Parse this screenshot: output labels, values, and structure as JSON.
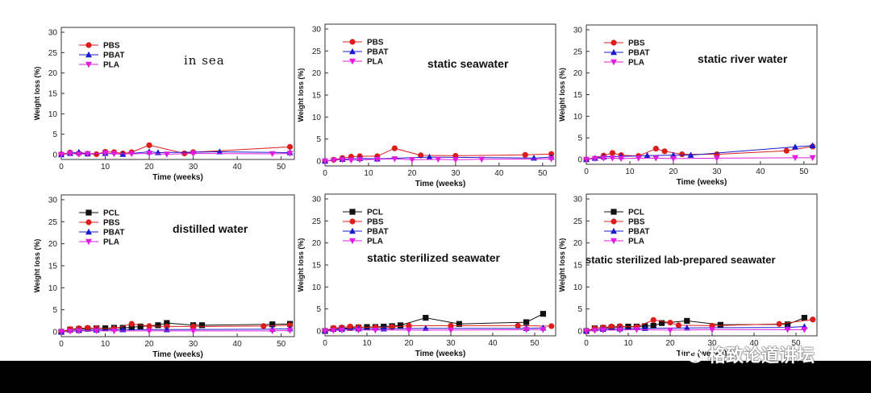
{
  "colors": {
    "PCL": "#111111",
    "PBS": "#dd1c1c",
    "PBAT": "#1a1ad0",
    "PLA": "#e01ce0"
  },
  "watermark": {
    "text": "格致论道讲坛",
    "icon": "wechat-icon"
  },
  "chart_data": [
    {
      "type": "line",
      "title": "in sea",
      "xlabel": "Time (weeks)",
      "ylabel": "Weight loss (%)",
      "xlim": [
        0,
        53
      ],
      "ylim": [
        0,
        30
      ],
      "xticks": [
        0,
        10,
        20,
        30,
        40,
        50
      ],
      "yticks": [
        0,
        5,
        10,
        15,
        20,
        25,
        30
      ],
      "legend": "top-left",
      "grid": false,
      "series": [
        {
          "name": "PBS",
          "marker": "circle",
          "x": [
            0,
            2,
            4,
            6,
            8,
            10,
            12,
            14,
            16,
            20,
            28,
            30,
            52
          ],
          "y": [
            0.1,
            0.5,
            0.3,
            0.2,
            0.1,
            0.7,
            0.6,
            0.3,
            0.6,
            2.3,
            0.3,
            0.6,
            1.9
          ]
        },
        {
          "name": "PBAT",
          "marker": "triangle-up",
          "x": [
            0,
            2,
            4,
            6,
            10,
            14,
            20,
            22,
            36,
            52
          ],
          "y": [
            0.0,
            0.3,
            0.6,
            0.2,
            0.3,
            0.1,
            0.7,
            0.5,
            0.7,
            0.5
          ]
        },
        {
          "name": "PLA",
          "marker": "triangle-down",
          "x": [
            0,
            2,
            4,
            6,
            10,
            12,
            16,
            20,
            24,
            30,
            48,
            52
          ],
          "y": [
            0.0,
            0.3,
            0.1,
            0.2,
            0.4,
            0.2,
            0.2,
            0.3,
            0.1,
            0.3,
            0.2,
            0.3
          ]
        }
      ]
    },
    {
      "type": "line",
      "title": "static seawater",
      "xlabel": "Time (weeks)",
      "ylabel": "Weight loss (%)",
      "xlim": [
        0,
        53
      ],
      "ylim": [
        0,
        30
      ],
      "xticks": [
        0,
        10,
        20,
        30,
        40,
        50
      ],
      "yticks": [
        0,
        5,
        10,
        15,
        20,
        25,
        30
      ],
      "legend": "top-left",
      "grid": false,
      "series": [
        {
          "name": "PBS",
          "marker": "circle",
          "x": [
            0,
            2,
            4,
            6,
            8,
            12,
            16,
            22,
            30,
            46,
            52
          ],
          "y": [
            0.0,
            0.3,
            0.7,
            1.0,
            1.1,
            1.1,
            2.9,
            1.3,
            1.2,
            1.4,
            1.6
          ]
        },
        {
          "name": "PBAT",
          "marker": "triangle-up",
          "x": [
            0,
            4,
            8,
            12,
            24,
            48,
            52
          ],
          "y": [
            0.0,
            0.4,
            0.6,
            0.5,
            0.9,
            0.7,
            0.9
          ]
        },
        {
          "name": "PLA",
          "marker": "triangle-down",
          "x": [
            0,
            2,
            4,
            6,
            8,
            12,
            16,
            20,
            26,
            30,
            36,
            52
          ],
          "y": [
            0.0,
            0.2,
            0.3,
            0.2,
            0.3,
            0.4,
            0.5,
            0.3,
            0.4,
            0.3,
            0.4,
            0.5
          ]
        }
      ]
    },
    {
      "type": "line",
      "title": "static river water",
      "xlabel": "Time (weeks)",
      "ylabel": "Weight loss (%)",
      "xlim": [
        0,
        53
      ],
      "ylim": [
        0,
        30
      ],
      "xticks": [
        0,
        10,
        20,
        30,
        40,
        50
      ],
      "yticks": [
        0,
        5,
        10,
        15,
        20,
        25,
        30
      ],
      "legend": "top-left",
      "grid": false,
      "series": [
        {
          "name": "PBS",
          "marker": "circle",
          "x": [
            0,
            4,
            6,
            8,
            12,
            16,
            18,
            22,
            30,
            46,
            52
          ],
          "y": [
            0.0,
            0.9,
            1.5,
            1.0,
            0.8,
            2.5,
            1.9,
            1.2,
            1.2,
            2.0,
            3.0
          ]
        },
        {
          "name": "PBAT",
          "marker": "triangle-up",
          "x": [
            0,
            2,
            4,
            8,
            14,
            20,
            24,
            48,
            52
          ],
          "y": [
            0.0,
            0.3,
            0.6,
            0.7,
            0.9,
            1.0,
            1.0,
            2.9,
            3.2
          ]
        },
        {
          "name": "PLA",
          "marker": "triangle-down",
          "x": [
            0,
            2,
            4,
            6,
            8,
            12,
            16,
            20,
            30,
            48,
            52
          ],
          "y": [
            0.0,
            0.2,
            0.3,
            0.3,
            0.2,
            0.3,
            0.3,
            0.2,
            0.3,
            0.4,
            0.4
          ]
        }
      ]
    },
    {
      "type": "line",
      "title": "distilled water",
      "xlabel": "Time (weeks)",
      "ylabel": "Weight loss (%)",
      "xlim": [
        0,
        53
      ],
      "ylim": [
        0,
        30
      ],
      "xticks": [
        0,
        10,
        20,
        30,
        40,
        50
      ],
      "yticks": [
        0,
        5,
        10,
        15,
        20,
        25,
        30
      ],
      "legend": "top-left",
      "grid": false,
      "series": [
        {
          "name": "PCL",
          "marker": "square",
          "x": [
            0,
            2,
            4,
            6,
            8,
            10,
            12,
            14,
            16,
            18,
            22,
            24,
            30,
            32,
            48,
            52
          ],
          "y": [
            0.0,
            0.5,
            0.6,
            0.7,
            0.8,
            0.8,
            0.9,
            0.9,
            1.0,
            1.2,
            1.5,
            2.0,
            1.5,
            1.5,
            1.7,
            1.8
          ]
        },
        {
          "name": "PBS",
          "marker": "circle",
          "x": [
            0,
            2,
            4,
            6,
            8,
            12,
            16,
            20,
            24,
            30,
            46,
            52
          ],
          "y": [
            0.0,
            0.6,
            0.8,
            0.9,
            0.8,
            0.7,
            1.8,
            1.3,
            1.2,
            1.2,
            1.3,
            1.5
          ]
        },
        {
          "name": "PBAT",
          "marker": "triangle-up",
          "x": [
            0,
            4,
            8,
            14,
            24,
            48,
            52
          ],
          "y": [
            0.0,
            0.3,
            0.4,
            0.5,
            0.5,
            0.6,
            0.7
          ]
        },
        {
          "name": "PLA",
          "marker": "triangle-down",
          "x": [
            0,
            2,
            4,
            8,
            12,
            20,
            30,
            48,
            52
          ],
          "y": [
            0.0,
            0.1,
            0.2,
            0.2,
            0.2,
            0.2,
            0.2,
            0.2,
            0.3
          ]
        }
      ]
    },
    {
      "type": "line",
      "title": "static sterilized seawater",
      "xlabel": "Time (weeks)",
      "ylabel": "Weight loss (%)",
      "xlim": [
        0,
        55
      ],
      "ylim": [
        0,
        30
      ],
      "xticks": [
        0,
        10,
        20,
        30,
        40,
        50
      ],
      "yticks": [
        0,
        5,
        10,
        15,
        20,
        25,
        30
      ],
      "legend": "top-left",
      "grid": false,
      "series": [
        {
          "name": "PCL",
          "marker": "square",
          "x": [
            0,
            2,
            4,
            6,
            8,
            10,
            12,
            14,
            16,
            18,
            24,
            32,
            48,
            52
          ],
          "y": [
            0.0,
            0.5,
            0.6,
            0.7,
            0.8,
            0.9,
            0.9,
            1.0,
            1.1,
            1.3,
            3.0,
            1.6,
            2.0,
            3.9
          ]
        },
        {
          "name": "PBS",
          "marker": "circle",
          "x": [
            0,
            2,
            4,
            6,
            8,
            12,
            16,
            20,
            30,
            46,
            54
          ],
          "y": [
            0.0,
            0.7,
            0.8,
            1.0,
            0.9,
            0.8,
            0.9,
            1.2,
            1.2,
            1.2,
            1.1
          ]
        },
        {
          "name": "PBAT",
          "marker": "triangle-up",
          "x": [
            0,
            4,
            8,
            14,
            24,
            48,
            52
          ],
          "y": [
            0.0,
            0.4,
            0.5,
            0.5,
            0.6,
            0.6,
            0.7
          ]
        },
        {
          "name": "PLA",
          "marker": "triangle-down",
          "x": [
            0,
            2,
            4,
            8,
            12,
            20,
            30,
            48,
            52
          ],
          "y": [
            0.0,
            0.1,
            0.2,
            0.2,
            0.2,
            0.2,
            0.2,
            0.3,
            0.3
          ]
        }
      ]
    },
    {
      "type": "line",
      "title": "static sterilized lab-prepared seawater",
      "xlabel": "Time (weeks)",
      "ylabel": "Weight loss (%)",
      "xlim": [
        0,
        55
      ],
      "ylim": [
        0,
        30
      ],
      "xticks": [
        0,
        10,
        20,
        30,
        40,
        50
      ],
      "yticks": [
        0,
        5,
        10,
        15,
        20,
        25,
        30
      ],
      "legend": "top-left",
      "grid": false,
      "series": [
        {
          "name": "PCL",
          "marker": "square",
          "x": [
            0,
            2,
            4,
            6,
            8,
            10,
            12,
            14,
            16,
            18,
            24,
            32,
            48,
            52
          ],
          "y": [
            0.0,
            0.6,
            0.7,
            0.8,
            0.9,
            1.0,
            1.0,
            1.1,
            1.2,
            1.8,
            2.3,
            1.4,
            1.5,
            3.0
          ]
        },
        {
          "name": "PBS",
          "marker": "circle",
          "x": [
            0,
            2,
            4,
            6,
            8,
            12,
            16,
            20,
            22,
            30,
            46,
            54
          ],
          "y": [
            0.0,
            0.6,
            0.8,
            1.0,
            1.1,
            0.9,
            2.5,
            1.9,
            1.3,
            1.2,
            1.6,
            2.6
          ]
        },
        {
          "name": "PBAT",
          "marker": "triangle-up",
          "x": [
            0,
            4,
            8,
            14,
            24,
            48,
            52
          ],
          "y": [
            0.0,
            0.4,
            0.5,
            0.6,
            0.7,
            0.8,
            1.0
          ]
        },
        {
          "name": "PLA",
          "marker": "triangle-down",
          "x": [
            0,
            2,
            4,
            8,
            12,
            20,
            30,
            48,
            52
          ],
          "y": [
            0.0,
            0.1,
            0.2,
            0.2,
            0.3,
            0.2,
            0.3,
            0.3,
            0.3
          ]
        }
      ]
    }
  ]
}
